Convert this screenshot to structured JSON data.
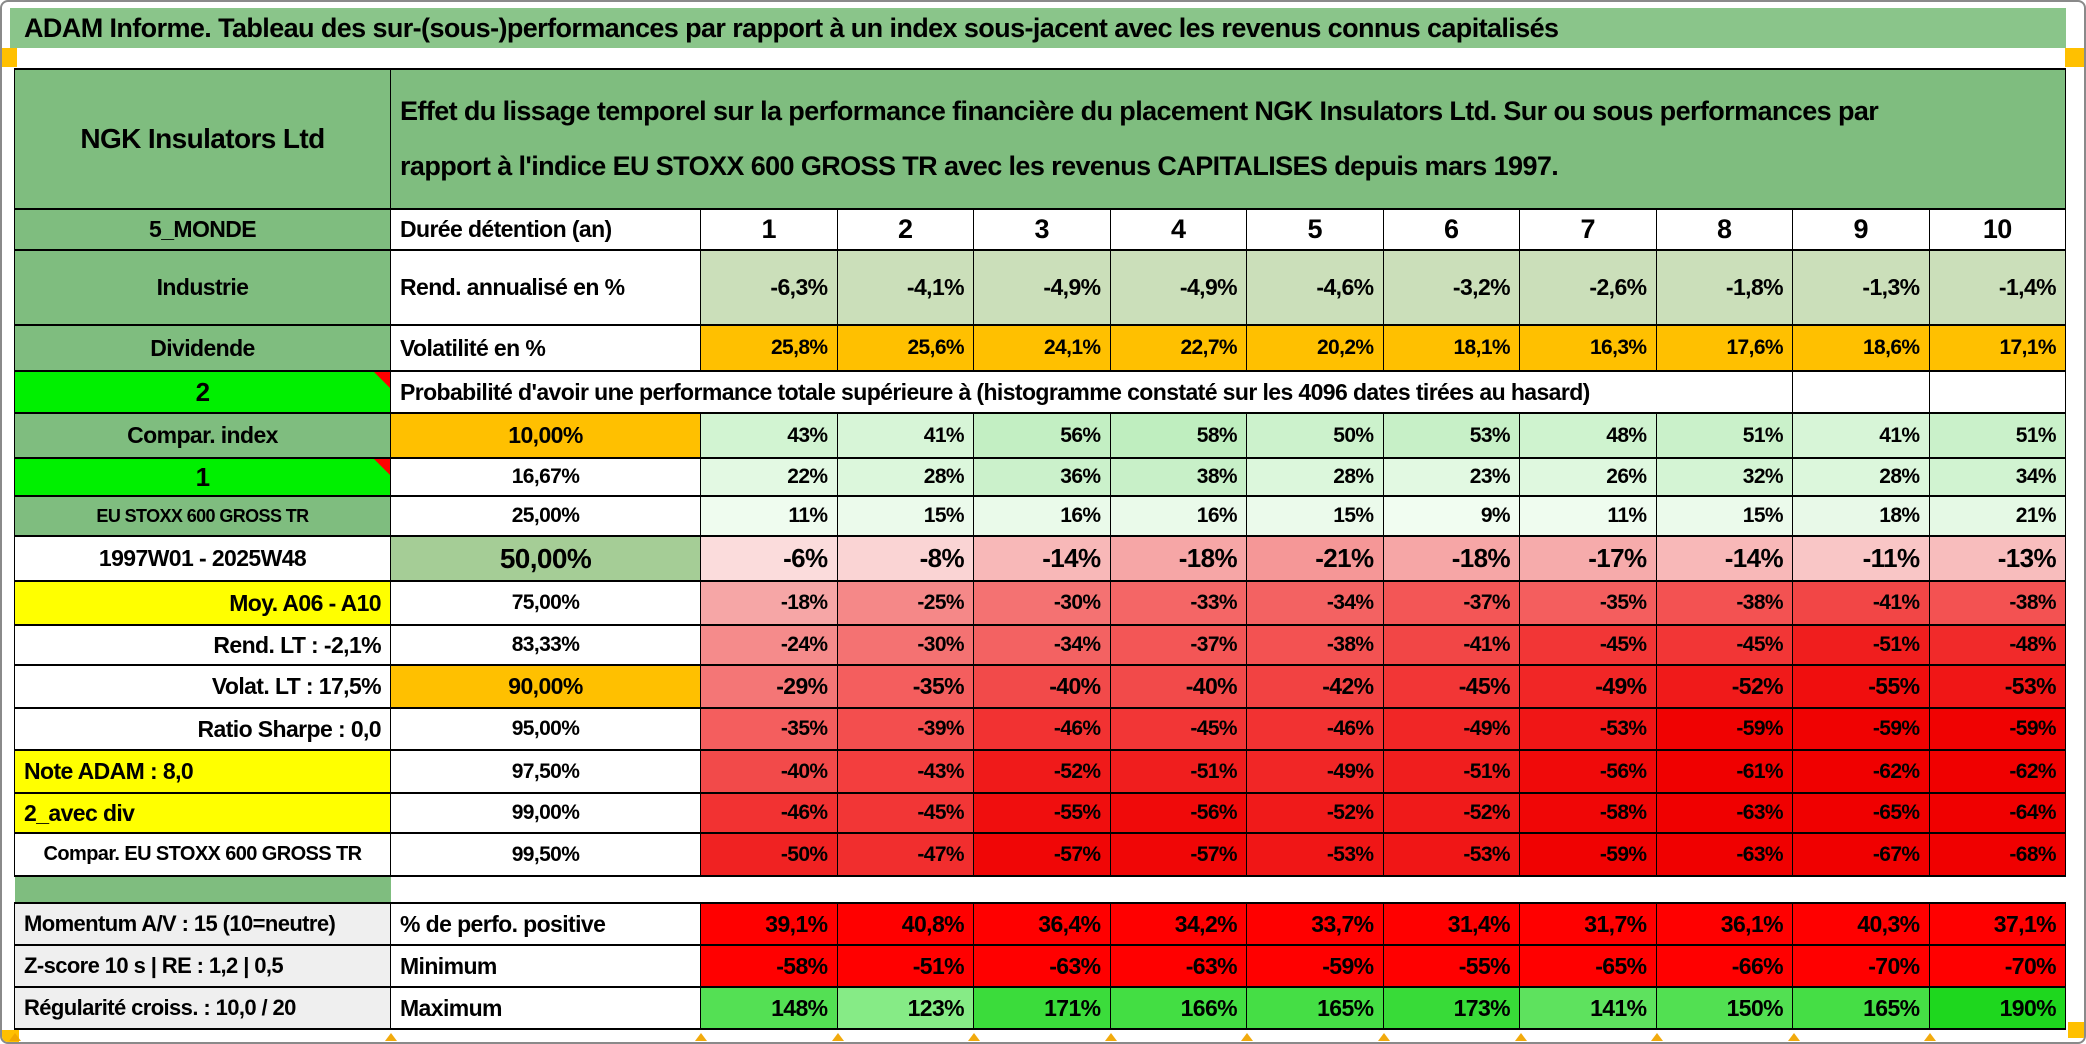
{
  "title": "ADAM Informe. Tableau des sur-(sous-)performances par rapport à un index sous-jacent avec les revenus connus capitalisés",
  "colors": {
    "title_green": "#8AC58A",
    "label_green": "#7FBD7F",
    "bright_green": "#00F000",
    "orange": "#FFC000",
    "yellow": "#FFFF00",
    "sage_green": "#CBDFBA",
    "mid_green_50": "#A5CD96",
    "pure_red": "#FF0000",
    "gray_label": "#EFEFEF",
    "marker_orange": "#FFC000",
    "comment_triangle_red": "#FF0000"
  },
  "table": {
    "rows": [
      {
        "name": "header",
        "a": "NGK Insulators Ltd",
        "desc": "Effet du lissage temporel sur la performance financière du placement NGK Insulators Ltd. Sur ou sous performances par rapport à l'indice EU STOXX 600 GROSS TR avec les revenus CAPITALISES depuis mars 1997."
      },
      {
        "name": "duree",
        "a": "5_MONDE",
        "b": "Durée détention (an)",
        "vals": [
          "1",
          "2",
          "3",
          "4",
          "5",
          "6",
          "7",
          "8",
          "9",
          "10"
        ]
      },
      {
        "name": "rend",
        "a": "Industrie",
        "b": "Rend. annualisé en %",
        "bg": "#CBDFBA",
        "vals": [
          "-6,3%",
          "-4,1%",
          "-4,9%",
          "-4,9%",
          "-4,6%",
          "-3,2%",
          "-2,6%",
          "-1,8%",
          "-1,3%",
          "-1,4%"
        ]
      },
      {
        "name": "volat",
        "a": "Dividende",
        "b": "Volatilité en %",
        "bg": "#FFC000",
        "vals": [
          "25,8%",
          "25,6%",
          "24,1%",
          "22,7%",
          "20,2%",
          "18,1%",
          "16,3%",
          "17,6%",
          "18,6%",
          "17,1%"
        ]
      },
      {
        "name": "proba",
        "a": "2",
        "text": "Probabilité d'avoir une performance totale supérieure à (histogramme constaté sur les 4096 dates tirées au hasard)"
      },
      {
        "name": "p10",
        "a": "Compar. index",
        "b": "10,00%",
        "vals": [
          "43%",
          "41%",
          "56%",
          "58%",
          "50%",
          "53%",
          "48%",
          "51%",
          "41%",
          "51%"
        ],
        "bgs": [
          "#D2F4D2",
          "#D7F5D7",
          "#C3EFC3",
          "#BFEEBF",
          "#CCF2CC",
          "#C7F0C7",
          "#CFF3CF",
          "#CAF1CA",
          "#D7F5D7",
          "#CAF1CA"
        ]
      },
      {
        "name": "p1667",
        "a": "1",
        "b": "16,67%",
        "vals": [
          "22%",
          "28%",
          "36%",
          "38%",
          "28%",
          "23%",
          "26%",
          "32%",
          "28%",
          "34%"
        ],
        "bgs": [
          "#E3F9E3",
          "#DCF7DC",
          "#CBF1CB",
          "#C8F0C8",
          "#DCF7DC",
          "#E2F9E2",
          "#DFF8DF",
          "#D4F4D4",
          "#DCF7DC",
          "#D1F3D1"
        ]
      },
      {
        "name": "p25",
        "a": "EU STOXX 600 GROSS TR",
        "b": "25,00%",
        "vals": [
          "11%",
          "15%",
          "16%",
          "16%",
          "15%",
          "9%",
          "11%",
          "15%",
          "18%",
          "21%"
        ],
        "bgs": [
          "#EFFCEF",
          "#EBFAEB",
          "#EAFAEA",
          "#EAFAEA",
          "#EBFAEB",
          "#F1FDF1",
          "#EFFCEF",
          "#EBFAEB",
          "#E8F9E8",
          "#E5F9E5"
        ]
      },
      {
        "name": "p50",
        "a": "1997W01 - 2025W48",
        "b": "50,00%",
        "vals": [
          "-6%",
          "-8%",
          "-14%",
          "-18%",
          "-21%",
          "-18%",
          "-17%",
          "-14%",
          "-11%",
          "-13%"
        ],
        "bgs": [
          "#FBDCDC",
          "#FAD4D4",
          "#F8B8B8",
          "#F6A6A6",
          "#F59797",
          "#F6A6A6",
          "#F6ABAB",
          "#F8B8B8",
          "#F9C6C6",
          "#F8BDBD"
        ]
      },
      {
        "name": "p75",
        "a": "Moy. A06 - A10",
        "b": "75,00%",
        "vals": [
          "-18%",
          "-25%",
          "-30%",
          "-33%",
          "-34%",
          "-37%",
          "-35%",
          "-38%",
          "-41%",
          "-38%"
        ],
        "bgs": [
          "#F6A6A6",
          "#F58888",
          "#F47272",
          "#F46666",
          "#F36262",
          "#F35656",
          "#F45E5E",
          "#F35252",
          "#F24646",
          "#F35252"
        ]
      },
      {
        "name": "p8333",
        "a": "Rend. LT :   -2,1%",
        "b": "83,33%",
        "vals": [
          "-24%",
          "-30%",
          "-34%",
          "-37%",
          "-38%",
          "-41%",
          "-45%",
          "-45%",
          "-51%",
          "-48%"
        ],
        "bgs": [
          "#F58B8B",
          "#F47272",
          "#F36262",
          "#F35656",
          "#F35252",
          "#F24646",
          "#F23636",
          "#F23636",
          "#F01E1E",
          "#F12A2A"
        ]
      },
      {
        "name": "p90",
        "a": "Volat. LT :   17,5%",
        "b": "90,00%",
        "vals": [
          "-29%",
          "-35%",
          "-40%",
          "-40%",
          "-42%",
          "-45%",
          "-49%",
          "-52%",
          "-55%",
          "-53%"
        ],
        "bgs": [
          "#F47676",
          "#F45E5E",
          "#F24A4A",
          "#F24A4A",
          "#F24242",
          "#F23636",
          "#F12626",
          "#F01A1A",
          "#F00E0E",
          "#F01616"
        ]
      },
      {
        "name": "p95",
        "a": "Ratio Sharpe :   0,0",
        "b": "95,00%",
        "vals": [
          "-35%",
          "-39%",
          "-46%",
          "-45%",
          "-46%",
          "-49%",
          "-53%",
          "-59%",
          "-59%",
          "-59%"
        ],
        "bgs": [
          "#F45E5E",
          "#F34E4E",
          "#F23232",
          "#F23636",
          "#F23232",
          "#F12626",
          "#F01616",
          "#F00202",
          "#F00202",
          "#F00202"
        ]
      },
      {
        "name": "p975",
        "a": "Note ADAM : 8,0",
        "b": "97,50%",
        "vals": [
          "-40%",
          "-43%",
          "-52%",
          "-51%",
          "-49%",
          "-51%",
          "-56%",
          "-61%",
          "-62%",
          "-62%"
        ],
        "bgs": [
          "#F24A4A",
          "#F33E3E",
          "#F01A1A",
          "#F01E1E",
          "#F12626",
          "#F01E1E",
          "#F00A0A",
          "#F00000",
          "#F00000",
          "#F00000"
        ]
      },
      {
        "name": "p99",
        "a": "2_avec div",
        "b": "99,00%",
        "vals": [
          "-46%",
          "-45%",
          "-55%",
          "-56%",
          "-52%",
          "-52%",
          "-58%",
          "-63%",
          "-65%",
          "-64%"
        ],
        "bgs": [
          "#F23232",
          "#F23636",
          "#F00E0E",
          "#F00A0A",
          "#F01A1A",
          "#F01A1A",
          "#F00606",
          "#F00000",
          "#F00000",
          "#F00000"
        ]
      },
      {
        "name": "p995",
        "a": "Compar. EU STOXX 600 GROSS TR",
        "b": "99,50%",
        "vals": [
          "-50%",
          "-47%",
          "-57%",
          "-57%",
          "-53%",
          "-53%",
          "-59%",
          "-63%",
          "-67%",
          "-68%"
        ],
        "bgs": [
          "#F02222",
          "#F12E2E",
          "#F00606",
          "#F00606",
          "#F01616",
          "#F01616",
          "#F00202",
          "#F00000",
          "#F00000",
          "#F00000"
        ]
      },
      {
        "name": "spacer"
      },
      {
        "name": "perfpos",
        "a": "Momentum A/V : 15 (10=neutre)",
        "b": "% de perfo. positive",
        "bg": "#FF0000",
        "vals": [
          "39,1%",
          "40,8%",
          "36,4%",
          "34,2%",
          "33,7%",
          "31,4%",
          "31,7%",
          "36,1%",
          "40,3%",
          "37,1%"
        ]
      },
      {
        "name": "minimum",
        "a": "Z-score 10 s | RE : 1,2 | 0,5",
        "b": "Minimum",
        "bg": "#FF0000",
        "vals": [
          "-58%",
          "-51%",
          "-63%",
          "-63%",
          "-59%",
          "-55%",
          "-65%",
          "-66%",
          "-70%",
          "-70%"
        ]
      },
      {
        "name": "maximum",
        "a": "Régularité croiss. : 10,0 / 20",
        "b": "Maximum",
        "vals": [
          "148%",
          "123%",
          "171%",
          "166%",
          "165%",
          "173%",
          "141%",
          "150%",
          "165%",
          "190%"
        ],
        "bgs": [
          "#54E054",
          "#86EB86",
          "#3BDC3B",
          "#43DE43",
          "#45DE45",
          "#38DB38",
          "#5EE25E",
          "#52E052",
          "#45DE45",
          "#1ED71E"
        ]
      }
    ]
  }
}
